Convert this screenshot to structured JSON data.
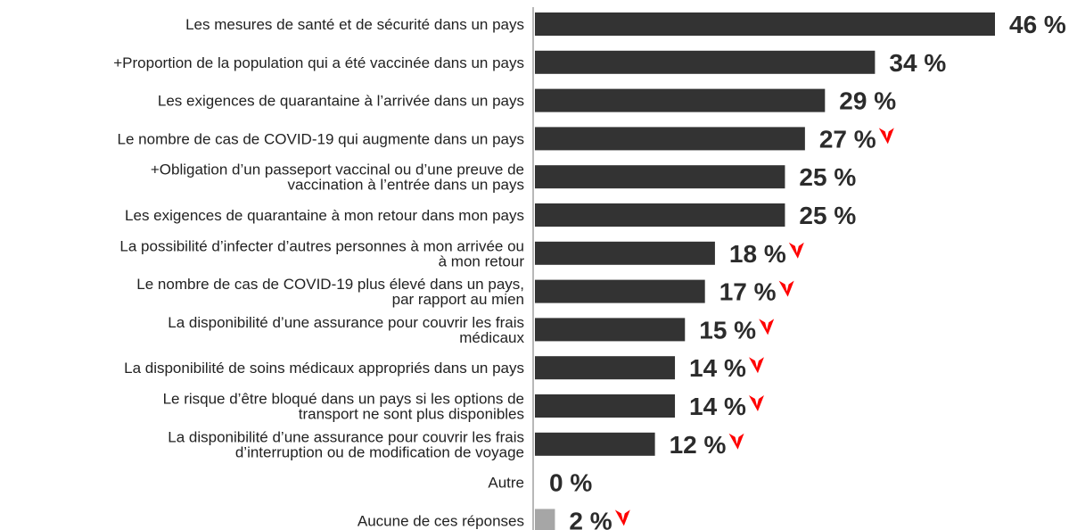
{
  "chart_data": {
    "type": "bar",
    "orientation": "horizontal",
    "categories": [
      "Les mesures de santé et de sécurité dans un pays",
      "+Proportion de la population qui a été vaccinée dans un pays",
      "Les exigences de quarantaine à l’arrivée dans un pays",
      "Le nombre de cas de COVID-19 qui augmente dans un pays",
      "+Obligation d’un passeport vaccinal ou d’une preuve de\nvaccination à l’entrée dans un pays",
      "Les exigences de quarantaine à mon retour dans mon pays",
      "La possibilité d’infecter d’autres personnes à mon arrivée ou\nà mon retour",
      "Le nombre de cas de COVID-19 plus élevé dans un pays,\npar rapport au mien",
      "La disponibilité d’une assurance pour couvrir les frais\nmédicaux",
      "La disponibilité de soins médicaux appropriés dans un pays",
      "Le risque d’être bloqué dans un pays si les options de\ntransport ne sont plus disponibles",
      "La disponibilité d’une assurance pour couvrir les frais\nd’interruption ou de modification de voyage",
      "Autre",
      "Aucune de ces réponses"
    ],
    "values": [
      46,
      34,
      29,
      27,
      25,
      25,
      18,
      17,
      15,
      14,
      14,
      12,
      0,
      2
    ],
    "value_labels": [
      "46 %",
      "34 %",
      "29 %",
      "27 %",
      "25 %",
      "25 %",
      "18 %",
      "17 %",
      "15 %",
      "14 %",
      "14 %",
      "12 %",
      "0 %",
      "2 %"
    ],
    "colors": [
      "#333333",
      "#333333",
      "#333333",
      "#333333",
      "#333333",
      "#333333",
      "#333333",
      "#333333",
      "#333333",
      "#333333",
      "#333333",
      "#333333",
      "#333333",
      "#a6a6a6"
    ],
    "decrease": [
      false,
      false,
      false,
      true,
      false,
      false,
      true,
      true,
      true,
      true,
      true,
      true,
      false,
      true
    ],
    "decrease_color": "#ff0000",
    "xlim": [
      0,
      46
    ]
  }
}
